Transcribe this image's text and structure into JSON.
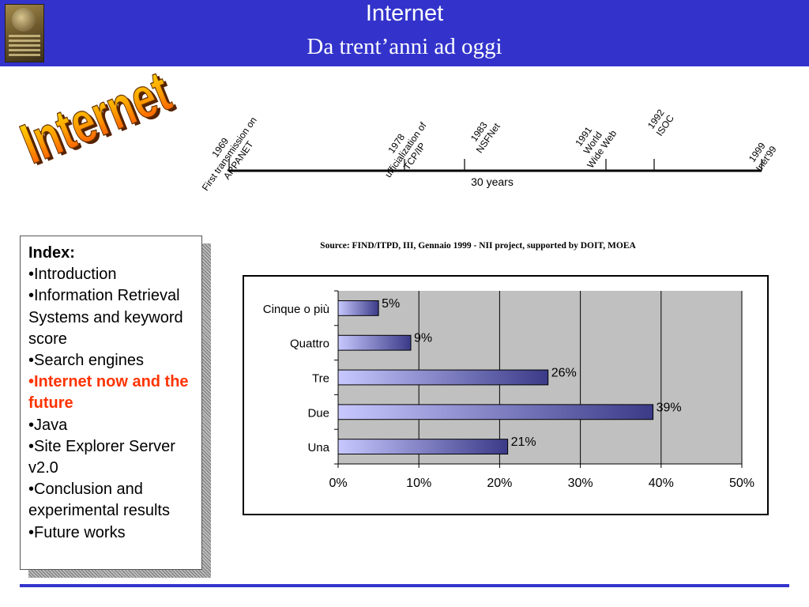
{
  "header": {
    "title": "Internet",
    "subtitle": "Da trent’anni ad oggi",
    "logo_icon": "university-crest-icon",
    "color": "#3333cc"
  },
  "wordart": {
    "text": "Internet"
  },
  "timeline": {
    "span_label": "30 years",
    "events": [
      {
        "year": "1969",
        "label": "First transmission on",
        "label2": "ARPANET"
      },
      {
        "year": "1978",
        "label": "ufficialization of",
        "label2": "TCP/IP"
      },
      {
        "year": "1983",
        "label": "NSFNet",
        "label2": ""
      },
      {
        "year": "1991",
        "label": "World",
        "label2": "Wide Web"
      },
      {
        "year": "1992",
        "label": "ISOC",
        "label2": ""
      },
      {
        "year": "1999",
        "label": "Inet'99",
        "label2": ""
      }
    ]
  },
  "index": {
    "heading": "Index:",
    "items": [
      {
        "text": "•Introduction"
      },
      {
        "text": "•Information Retrieval Systems and keyword score"
      },
      {
        "text": "•Search engines"
      },
      {
        "text": "•Internet now and the future",
        "highlight": true
      },
      {
        "text": "•Java"
      },
      {
        "text": "•Site Explorer Server v2.0"
      },
      {
        "text": "•Conclusion and experimental results"
      },
      {
        "text": "•Future works"
      }
    ],
    "highlight_color": "#ff3300"
  },
  "source": "Source: FIND/ITPD, III, Gennaio 1999 - NII project, supported by DOIT, MOEA",
  "chart_data": {
    "type": "bar",
    "orientation": "horizontal",
    "categories": [
      "Cinque o più",
      "Quattro",
      "Tre",
      "Due",
      "Una"
    ],
    "values": [
      5,
      9,
      26,
      39,
      21
    ],
    "value_labels": [
      "5%",
      "9%",
      "26%",
      "39%",
      "21%"
    ],
    "xlim": [
      0,
      50
    ],
    "xticks": [
      "0%",
      "10%",
      "20%",
      "30%",
      "40%",
      "50%"
    ],
    "grid": true,
    "plot_background": "#c0c0c0",
    "bar_color": "#3a3a88"
  }
}
